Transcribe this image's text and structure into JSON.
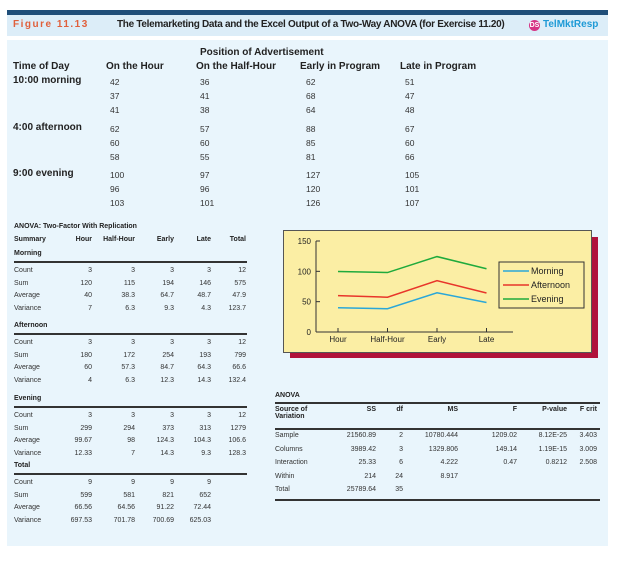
{
  "figure": {
    "label": "Figure 11.13",
    "title": "The Telemarketing Data and the Excel Output of a Two-Way ANOVA (for Exercise 11.20)",
    "ds_badge": "DS",
    "dataset": "TelMktResp"
  },
  "data_table": {
    "super_header": "Position of Advertisement",
    "headers": [
      "Time of Day",
      "On the Hour",
      "On the Half-Hour",
      "Early in Program",
      "Late in Program"
    ],
    "groups": [
      {
        "label": "10:00 morning",
        "rows": [
          [
            "42",
            "36",
            "62",
            "51"
          ],
          [
            "37",
            "41",
            "68",
            "47"
          ],
          [
            "41",
            "38",
            "64",
            "48"
          ]
        ]
      },
      {
        "label": "4:00 afternoon",
        "rows": [
          [
            "62",
            "57",
            "88",
            "67"
          ],
          [
            "60",
            "60",
            "85",
            "60"
          ],
          [
            "58",
            "55",
            "81",
            "66"
          ]
        ]
      },
      {
        "label": "9:00 evening",
        "rows": [
          [
            "100",
            "97",
            "127",
            "105"
          ],
          [
            "96",
            "96",
            "120",
            "101"
          ],
          [
            "103",
            "101",
            "126",
            "107"
          ]
        ]
      }
    ]
  },
  "summary": {
    "title": "ANOVA: Two-Factor With Replication",
    "headers": [
      "Summary",
      "Hour",
      "Half-Hour",
      "Early",
      "Late",
      "Total"
    ],
    "sections": [
      {
        "label": "Morning",
        "rows": [
          [
            "Count",
            "3",
            "3",
            "3",
            "3",
            "12"
          ],
          [
            "Sum",
            "120",
            "115",
            "194",
            "146",
            "575"
          ],
          [
            "Average",
            "40",
            "38.3",
            "64.7",
            "48.7",
            "47.9"
          ],
          [
            "Variance",
            "7",
            "6.3",
            "9.3",
            "4.3",
            "123.7"
          ]
        ]
      },
      {
        "label": "Afternoon",
        "rows": [
          [
            "Count",
            "3",
            "3",
            "3",
            "3",
            "12"
          ],
          [
            "Sum",
            "180",
            "172",
            "254",
            "193",
            "799"
          ],
          [
            "Average",
            "60",
            "57.3",
            "84.7",
            "64.3",
            "66.6"
          ],
          [
            "Variance",
            "4",
            "6.3",
            "12.3",
            "14.3",
            "132.4"
          ]
        ]
      },
      {
        "label": "Evening",
        "rows": [
          [
            "Count",
            "3",
            "3",
            "3",
            "3",
            "12"
          ],
          [
            "Sum",
            "299",
            "294",
            "373",
            "313",
            "1279"
          ],
          [
            "Average",
            "99.67",
            "98",
            "124.3",
            "104.3",
            "106.6"
          ],
          [
            "Variance",
            "12.33",
            "7",
            "14.3",
            "9.3",
            "128.3"
          ]
        ]
      },
      {
        "label": "Total",
        "rows": [
          [
            "Count",
            "9",
            "9",
            "9",
            "9",
            ""
          ],
          [
            "Sum",
            "599",
            "581",
            "821",
            "652",
            ""
          ],
          [
            "Average",
            "66.56",
            "64.56",
            "91.22",
            "72.44",
            ""
          ],
          [
            "Variance",
            "697.53",
            "701.78",
            "700.69",
            "625.03",
            ""
          ]
        ]
      }
    ]
  },
  "anova": {
    "title": "ANOVA",
    "headers": [
      "Source of Variation",
      "SS",
      "df",
      "MS",
      "F",
      "P-value",
      "F crit"
    ],
    "rows": [
      [
        "Sample",
        "21560.89",
        "2",
        "10780.444",
        "1209.02",
        "8.12E-25",
        "3.403"
      ],
      [
        "Columns",
        "3989.42",
        "3",
        "1329.806",
        "149.14",
        "1.19E-15",
        "3.009"
      ],
      [
        "Interaction",
        "25.33",
        "6",
        "4.222",
        "0.47",
        "0.8212",
        "2.508"
      ],
      [
        "Within",
        "214",
        "24",
        "8.917",
        "",
        "",
        ""
      ],
      [
        "Total",
        "25789.64",
        "35",
        "",
        "",
        "",
        ""
      ]
    ]
  },
  "chart_data": {
    "type": "line",
    "categories": [
      "Hour",
      "Half-Hour",
      "Early",
      "Late"
    ],
    "ylim": [
      0,
      150
    ],
    "yticks": [
      "0",
      "50",
      "100",
      "150"
    ],
    "legend": "right",
    "series": [
      {
        "name": "Morning",
        "values": [
          40,
          38.3,
          64.7,
          48.7
        ],
        "color": "#2aa7d8"
      },
      {
        "name": "Afternoon",
        "values": [
          60,
          57.3,
          84.7,
          64.3
        ],
        "color": "#e8352a"
      },
      {
        "name": "Evening",
        "values": [
          99.67,
          98,
          124.3,
          104.3
        ],
        "color": "#1faa3c"
      }
    ]
  }
}
